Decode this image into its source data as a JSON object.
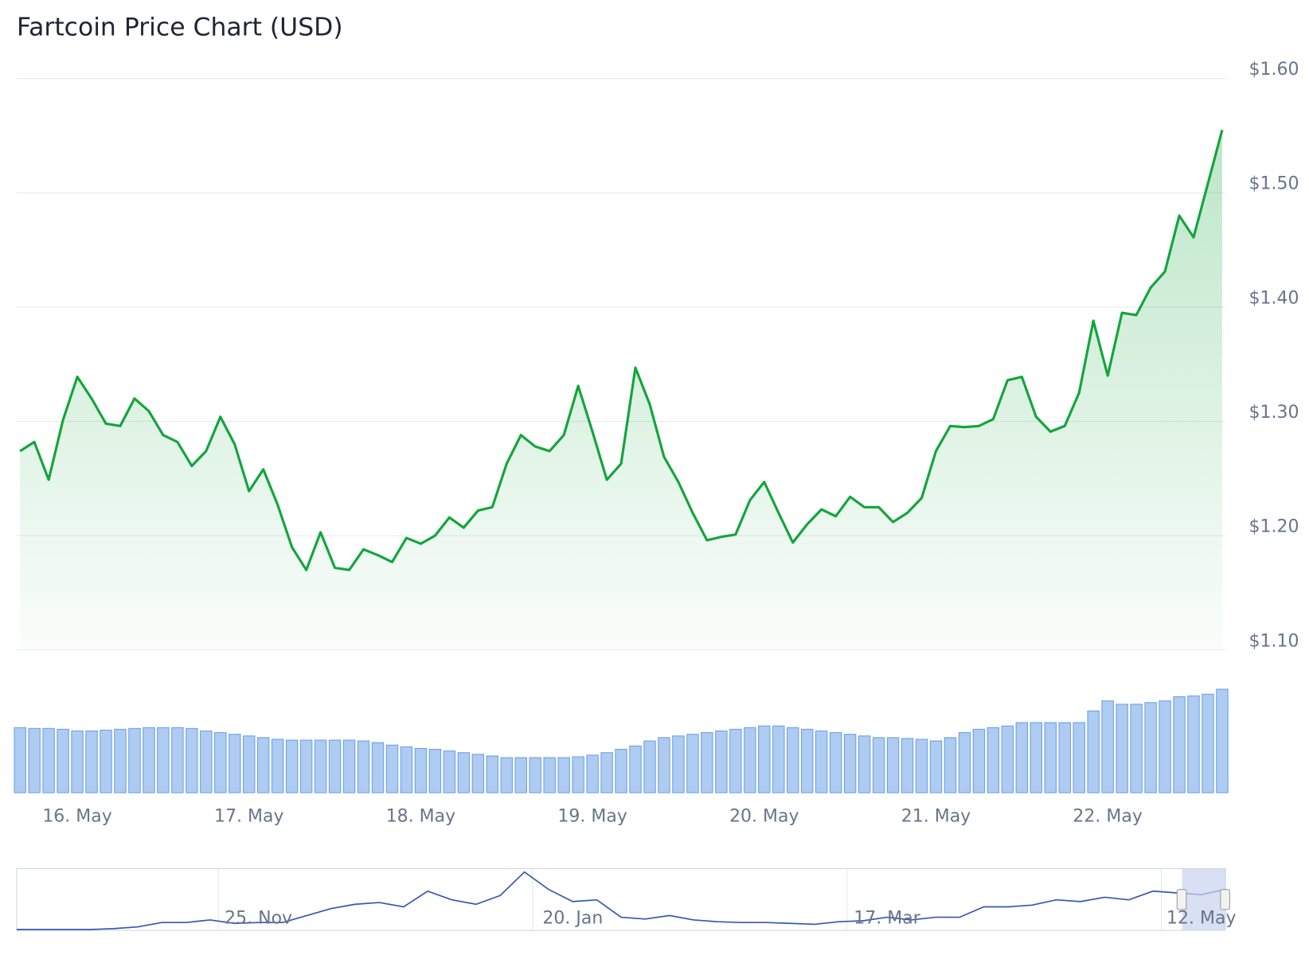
{
  "chart_data": {
    "type": "line",
    "title": "Fartcoin Price Chart (USD)",
    "categories": [
      null,
      null,
      null,
      null,
      "16. May",
      null,
      null,
      null,
      null,
      null,
      null,
      null,
      null,
      null,
      null,
      null,
      "17. May",
      null,
      null,
      null,
      null,
      null,
      null,
      null,
      null,
      null,
      null,
      null,
      "18. May",
      null,
      null,
      null,
      null,
      null,
      null,
      null,
      null,
      null,
      null,
      null,
      "19. May",
      null,
      null,
      null,
      null,
      null,
      null,
      null,
      null,
      null,
      null,
      null,
      "20. May",
      null,
      null,
      null,
      null,
      null,
      null,
      null,
      null,
      null,
      null,
      null,
      "21. May",
      null,
      null,
      null,
      null,
      null,
      null,
      null,
      null,
      null,
      null,
      null,
      "22. May",
      null,
      null,
      null,
      null,
      null,
      null,
      null,
      null
    ],
    "values": [
      1.274,
      1.282,
      1.249,
      1.301,
      1.339,
      1.32,
      1.298,
      1.296,
      1.32,
      1.309,
      1.288,
      1.282,
      1.261,
      1.274,
      1.304,
      1.28,
      1.239,
      1.258,
      1.227,
      1.19,
      1.17,
      1.203,
      1.172,
      1.17,
      1.188,
      1.183,
      1.177,
      1.198,
      1.193,
      1.2,
      1.216,
      1.207,
      1.222,
      1.225,
      1.263,
      1.288,
      1.278,
      1.274,
      1.288,
      1.331,
      1.291,
      1.249,
      1.263,
      1.347,
      1.315,
      1.269,
      1.247,
      1.22,
      1.196,
      1.199,
      1.201,
      1.231,
      1.247,
      1.22,
      1.194,
      1.21,
      1.223,
      1.217,
      1.234,
      1.225,
      1.225,
      1.212,
      1.22,
      1.233,
      1.274,
      1.296,
      1.295,
      1.296,
      1.302,
      1.336,
      1.339,
      1.304,
      1.291,
      1.296,
      1.325,
      1.388,
      1.34,
      1.395,
      1.393,
      1.417,
      1.431,
      1.48,
      1.461,
      1.508,
      1.555
    ],
    "color": "#12a53c",
    "ylim": [
      1.1,
      1.6
    ],
    "yticks": [
      {
        "value": 1.1,
        "label": "$1.10"
      },
      {
        "value": 1.2,
        "label": "$1.20"
      },
      {
        "value": 1.3,
        "label": "$1.30"
      },
      {
        "value": 1.4,
        "label": "$1.40"
      },
      {
        "value": 1.5,
        "label": "$1.50"
      },
      {
        "value": 1.6,
        "label": "$1.60"
      }
    ],
    "grid": true,
    "volume": {
      "type": "bar",
      "color": "#aecbf2",
      "values": [
        78,
        77,
        77,
        76,
        74,
        74,
        75,
        76,
        77,
        78,
        78,
        78,
        77,
        74,
        72,
        70,
        68,
        66,
        64,
        63,
        63,
        63,
        63,
        63,
        62,
        60,
        57,
        55,
        53,
        52,
        50,
        48,
        46,
        44,
        42,
        42,
        42,
        42,
        42,
        43,
        45,
        48,
        52,
        56,
        62,
        66,
        68,
        70,
        72,
        74,
        76,
        78,
        80,
        80,
        78,
        76,
        74,
        72,
        70,
        68,
        66,
        66,
        65,
        64,
        62,
        66,
        72,
        76,
        78,
        80,
        84,
        84,
        84,
        84,
        84,
        98,
        110,
        106,
        106,
        108,
        110,
        115,
        116,
        118,
        124
      ]
    },
    "navigator": {
      "type": "line",
      "color": "#3457b2",
      "categories": [
        null,
        null,
        null,
        null,
        null,
        null,
        null,
        null,
        null,
        null,
        "25. Nov",
        null,
        null,
        null,
        null,
        null,
        null,
        null,
        null,
        null,
        null,
        null,
        null,
        "20. Jan",
        null,
        null,
        null,
        null,
        null,
        null,
        null,
        null,
        null,
        null,
        null,
        null,
        "17. Mar",
        null,
        null,
        null,
        null,
        null,
        null,
        null,
        null,
        null,
        null,
        null,
        null,
        "12. May",
        null
      ],
      "values": [
        1,
        1,
        1,
        1,
        2,
        4,
        9,
        9,
        12,
        8,
        9,
        9,
        17,
        25,
        30,
        32,
        27,
        45,
        35,
        30,
        40,
        67,
        47,
        33,
        35,
        15,
        13,
        17,
        12,
        10,
        9,
        9,
        8,
        7,
        10,
        11,
        15,
        12,
        15,
        15,
        27,
        27,
        29,
        35,
        33,
        38,
        35,
        45,
        43,
        41,
        47
      ]
    }
  }
}
